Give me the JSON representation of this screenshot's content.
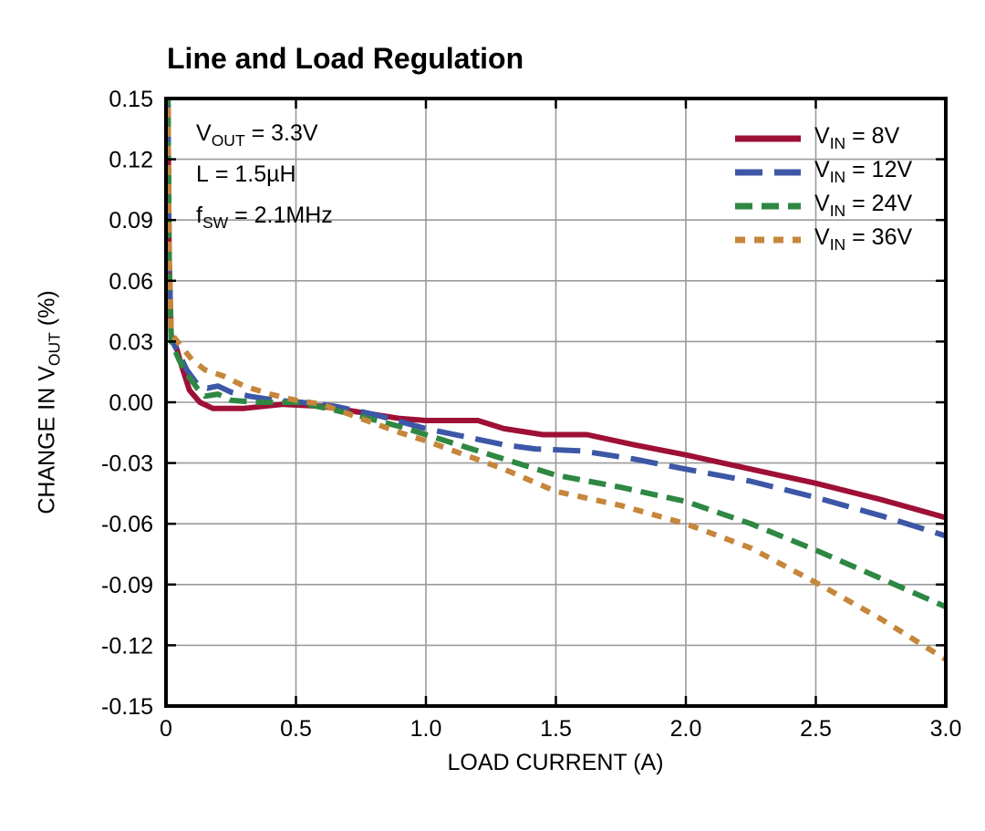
{
  "title": "Line and Load Regulation",
  "colors": {
    "background": "#ffffff",
    "grid": "#9b9b9b",
    "axis": "#000000",
    "vin8": "#9E1036",
    "vin12": "#3D57A7",
    "vin24": "#2E8742",
    "vin36": "#C6863B"
  },
  "annotation": {
    "lines": [
      {
        "main": "V",
        "sub": "OUT",
        "rest": " = 3.3V"
      },
      {
        "main": "L",
        "sub": "",
        "rest": " = 1.5µH"
      },
      {
        "main": "f",
        "sub": "SW",
        "rest": " = 2.1MHz"
      }
    ]
  },
  "legend": [
    {
      "main": "V",
      "sub": "IN",
      "rest": " = 8V"
    },
    {
      "main": "V",
      "sub": "IN",
      "rest": " = 12V"
    },
    {
      "main": "V",
      "sub": "IN",
      "rest": " = 24V"
    },
    {
      "main": "V",
      "sub": "IN",
      "rest": " = 36V"
    }
  ],
  "axes": {
    "x_title": "LOAD CURRENT (A)",
    "y_title_main": "CHANGE IN V",
    "y_title_sub": "OUT",
    "y_title_rest": " (%)"
  },
  "chart_data": {
    "type": "line",
    "title": "Line and Load Regulation",
    "xlabel": "LOAD CURRENT (A)",
    "ylabel": "CHANGE IN VOUT (%)",
    "xlim": [
      0,
      3.0
    ],
    "ylim": [
      -0.15,
      0.15
    ],
    "xticks": [
      {
        "v": 0,
        "label": "0"
      },
      {
        "v": 0.5,
        "label": "0.5"
      },
      {
        "v": 1.0,
        "label": "1.0"
      },
      {
        "v": 1.5,
        "label": "1.5"
      },
      {
        "v": 2.0,
        "label": "2.0"
      },
      {
        "v": 2.5,
        "label": "2.5"
      },
      {
        "v": 3.0,
        "label": "3.0"
      }
    ],
    "yticks": [
      {
        "v": 0.15,
        "label": "0.15"
      },
      {
        "v": 0.12,
        "label": "0.12"
      },
      {
        "v": 0.09,
        "label": "0.09"
      },
      {
        "v": 0.06,
        "label": "0.06"
      },
      {
        "v": 0.03,
        "label": "0.03"
      },
      {
        "v": 0.0,
        "label": "0.00"
      },
      {
        "v": -0.03,
        "label": "-0.03"
      },
      {
        "v": -0.06,
        "label": "-0.06"
      },
      {
        "v": -0.09,
        "label": "-0.09"
      },
      {
        "v": -0.12,
        "label": "-0.12"
      },
      {
        "v": -0.15,
        "label": "-0.15"
      }
    ],
    "grid": true,
    "legend_position": "inside-top-right",
    "conditions": [
      "VOUT = 3.3V",
      "L = 1.5µH",
      "fSW = 2.1MHz"
    ],
    "series": [
      {
        "name": "VIN = 8V",
        "color": "#9E1036",
        "dash": [],
        "points": [
          [
            0.007,
            0.155
          ],
          [
            0.012,
            0.07
          ],
          [
            0.02,
            0.033
          ],
          [
            0.04,
            0.027
          ],
          [
            0.06,
            0.018
          ],
          [
            0.09,
            0.006
          ],
          [
            0.13,
            0.0
          ],
          [
            0.18,
            -0.003
          ],
          [
            0.3,
            -0.003
          ],
          [
            0.45,
            -0.001
          ],
          [
            0.6,
            -0.002
          ],
          [
            0.75,
            -0.005
          ],
          [
            0.9,
            -0.008
          ],
          [
            1.0,
            -0.009
          ],
          [
            1.2,
            -0.009
          ],
          [
            1.3,
            -0.013
          ],
          [
            1.45,
            -0.016
          ],
          [
            1.62,
            -0.016
          ],
          [
            1.8,
            -0.021
          ],
          [
            2.0,
            -0.026
          ],
          [
            2.25,
            -0.033
          ],
          [
            2.5,
            -0.04
          ],
          [
            2.75,
            -0.048
          ],
          [
            3.0,
            -0.057
          ]
        ]
      },
      {
        "name": "VIN = 12V",
        "color": "#3D57A7",
        "dash": [
          30,
          13
        ],
        "points": [
          [
            0.007,
            0.155
          ],
          [
            0.012,
            0.07
          ],
          [
            0.02,
            0.031
          ],
          [
            0.05,
            0.024
          ],
          [
            0.08,
            0.016
          ],
          [
            0.12,
            0.009
          ],
          [
            0.16,
            0.007
          ],
          [
            0.2,
            0.008
          ],
          [
            0.25,
            0.005
          ],
          [
            0.32,
            0.003
          ],
          [
            0.42,
            0.001
          ],
          [
            0.52,
            0.0
          ],
          [
            0.65,
            -0.002
          ],
          [
            0.8,
            -0.006
          ],
          [
            1.0,
            -0.013
          ],
          [
            1.15,
            -0.017
          ],
          [
            1.3,
            -0.021
          ],
          [
            1.42,
            -0.023
          ],
          [
            1.6,
            -0.024
          ],
          [
            1.8,
            -0.028
          ],
          [
            2.0,
            -0.033
          ],
          [
            2.25,
            -0.039
          ],
          [
            2.5,
            -0.047
          ],
          [
            2.75,
            -0.056
          ],
          [
            3.0,
            -0.066
          ]
        ]
      },
      {
        "name": "VIN = 24V",
        "color": "#2E8742",
        "dash": [
          19,
          10
        ],
        "points": [
          [
            0.007,
            0.155
          ],
          [
            0.012,
            0.07
          ],
          [
            0.02,
            0.03
          ],
          [
            0.05,
            0.021
          ],
          [
            0.08,
            0.014
          ],
          [
            0.12,
            0.007
          ],
          [
            0.15,
            0.003
          ],
          [
            0.2,
            0.004
          ],
          [
            0.25,
            0.001
          ],
          [
            0.35,
            0.0
          ],
          [
            0.5,
            0.0
          ],
          [
            0.62,
            -0.003
          ],
          [
            0.75,
            -0.007
          ],
          [
            0.9,
            -0.012
          ],
          [
            1.0,
            -0.016
          ],
          [
            1.2,
            -0.024
          ],
          [
            1.35,
            -0.03
          ],
          [
            1.5,
            -0.036
          ],
          [
            1.75,
            -0.042
          ],
          [
            2.0,
            -0.049
          ],
          [
            2.25,
            -0.06
          ],
          [
            2.5,
            -0.073
          ],
          [
            2.75,
            -0.087
          ],
          [
            3.0,
            -0.101
          ]
        ]
      },
      {
        "name": "VIN = 36V",
        "color": "#C6863B",
        "dash": [
          11,
          10
        ],
        "points": [
          [
            0.007,
            0.155
          ],
          [
            0.012,
            0.075
          ],
          [
            0.02,
            0.034
          ],
          [
            0.05,
            0.029
          ],
          [
            0.1,
            0.021
          ],
          [
            0.15,
            0.016
          ],
          [
            0.22,
            0.013
          ],
          [
            0.3,
            0.008
          ],
          [
            0.4,
            0.004
          ],
          [
            0.5,
            0.001
          ],
          [
            0.6,
            -0.001
          ],
          [
            0.75,
            -0.008
          ],
          [
            0.9,
            -0.015
          ],
          [
            1.0,
            -0.019
          ],
          [
            1.15,
            -0.026
          ],
          [
            1.3,
            -0.033
          ],
          [
            1.5,
            -0.044
          ],
          [
            1.75,
            -0.051
          ],
          [
            2.0,
            -0.06
          ],
          [
            2.25,
            -0.072
          ],
          [
            2.5,
            -0.089
          ],
          [
            2.75,
            -0.107
          ],
          [
            3.0,
            -0.127
          ]
        ]
      }
    ]
  }
}
